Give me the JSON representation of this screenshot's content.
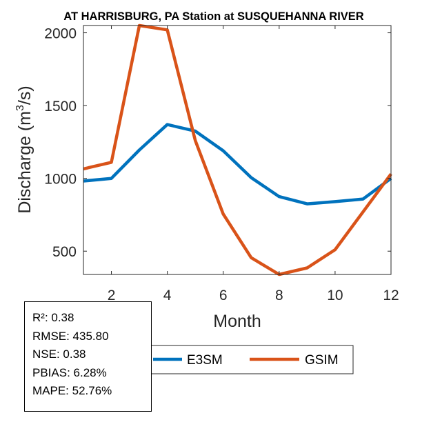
{
  "chart_data": {
    "type": "line",
    "title": "AT HARRISBURG, PA  Station at  SUSQUEHANNA RIVER",
    "xlabel": "Month",
    "ylabel_prefix": "Discharge (m",
    "ylabel_sup": "3",
    "ylabel_suffix": "/s)",
    "xlim": [
      1,
      12
    ],
    "ylim": [
      340,
      2050
    ],
    "xticks": [
      2,
      4,
      6,
      8,
      10,
      12
    ],
    "yticks": [
      500,
      1000,
      1500,
      2000
    ],
    "x": [
      1,
      2,
      3,
      4,
      5,
      6,
      7,
      8,
      9,
      10,
      11,
      12
    ],
    "series": [
      {
        "name": "E3SM",
        "color": "#0072BD",
        "values": [
          982,
          1000,
          1195,
          1370,
          1325,
          1190,
          1005,
          875,
          825,
          840,
          858,
          1000
        ]
      },
      {
        "name": "GSIM",
        "color": "#D95319",
        "values": [
          1065,
          1110,
          2050,
          2020,
          1260,
          755,
          455,
          340,
          385,
          510,
          770,
          1030
        ]
      }
    ],
    "legend_placement": "bottom"
  },
  "stats": [
    "R²: 0.38",
    "RMSE: 435.80",
    "NSE: 0.38",
    "PBIAS: 6.28%",
    "MAPE: 52.76%"
  ]
}
